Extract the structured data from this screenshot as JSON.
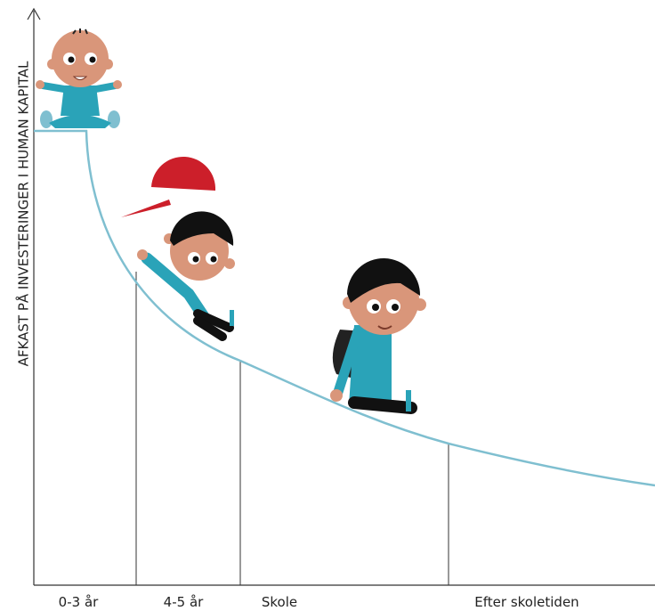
{
  "axis": {
    "y_label": "AFKAST PÅ INVESTERINGER I HUMAN KAPITAL"
  },
  "stages": [
    "0-3 år",
    "4-5 år",
    "Skole",
    "Efter skoletiden"
  ]
}
